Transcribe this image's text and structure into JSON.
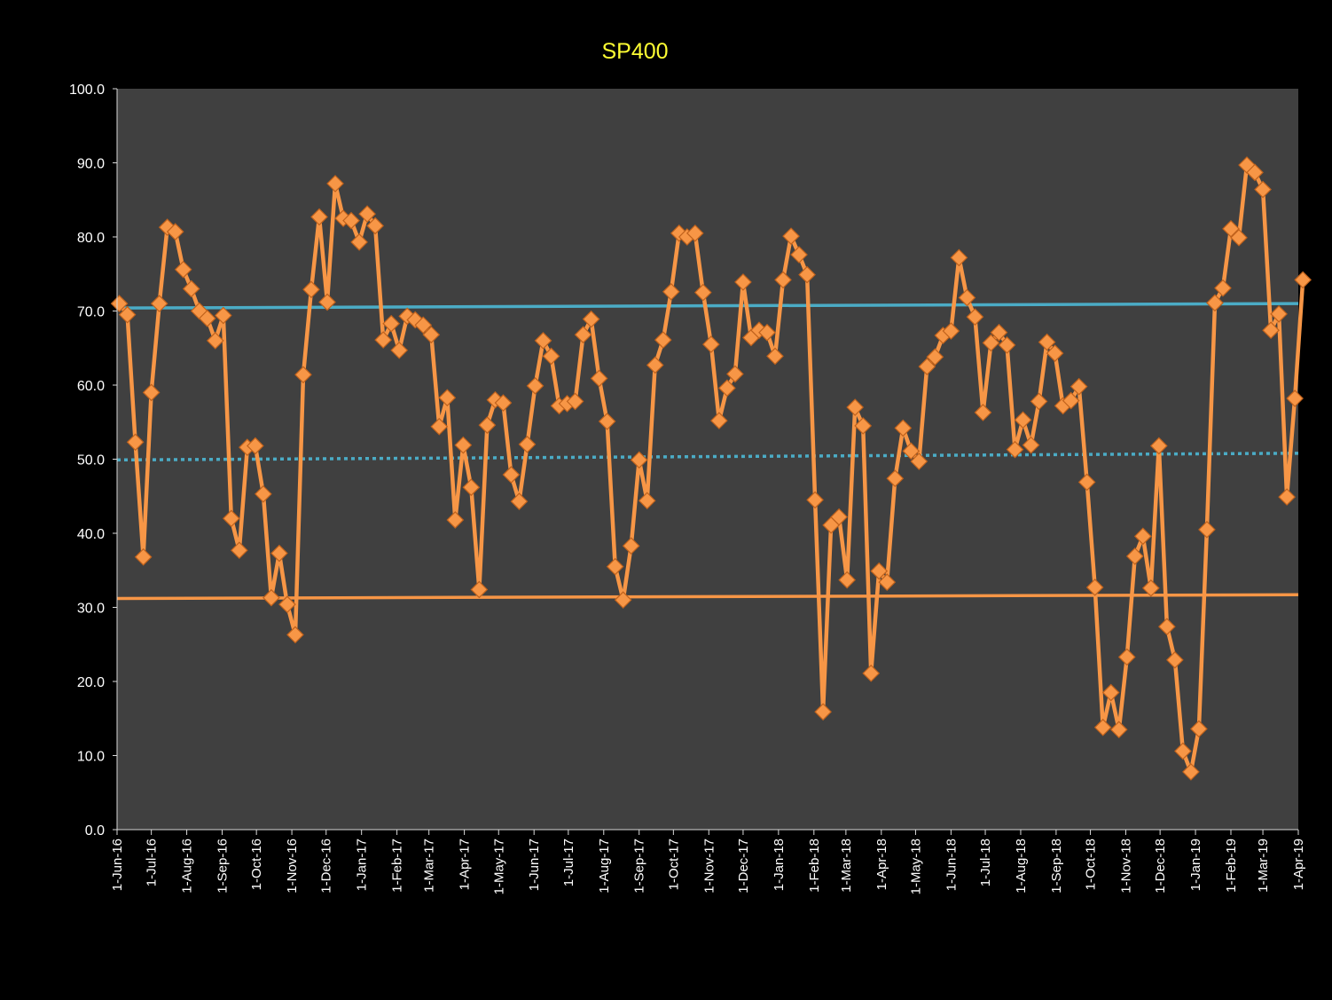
{
  "chart_data": {
    "type": "line",
    "title": "SP400",
    "xlabel": "",
    "ylabel": "",
    "ylim": [
      0,
      100
    ],
    "yticks": [
      "0.0",
      "10.0",
      "20.0",
      "30.0",
      "40.0",
      "50.0",
      "60.0",
      "70.0",
      "80.0",
      "90.0",
      "100.0"
    ],
    "xlim": [
      "2016-06-01",
      "2019-04-01"
    ],
    "xticks": [
      {
        "date": "2016-06-01",
        "label": "1-Jun-16"
      },
      {
        "date": "2016-07-01",
        "label": "1-Jul-16"
      },
      {
        "date": "2016-08-01",
        "label": "1-Aug-16"
      },
      {
        "date": "2016-09-01",
        "label": "1-Sep-16"
      },
      {
        "date": "2016-10-01",
        "label": "1-Oct-16"
      },
      {
        "date": "2016-11-01",
        "label": "1-Nov-16"
      },
      {
        "date": "2016-12-01",
        "label": "1-Dec-16"
      },
      {
        "date": "2017-01-01",
        "label": "1-Jan-17"
      },
      {
        "date": "2017-02-01",
        "label": "1-Feb-17"
      },
      {
        "date": "2017-03-01",
        "label": "1-Mar-17"
      },
      {
        "date": "2017-04-01",
        "label": "1-Apr-17"
      },
      {
        "date": "2017-05-01",
        "label": "1-May-17"
      },
      {
        "date": "2017-06-01",
        "label": "1-Jun-17"
      },
      {
        "date": "2017-07-01",
        "label": "1-Jul-17"
      },
      {
        "date": "2017-08-01",
        "label": "1-Aug-17"
      },
      {
        "date": "2017-09-01",
        "label": "1-Sep-17"
      },
      {
        "date": "2017-10-01",
        "label": "1-Oct-17"
      },
      {
        "date": "2017-11-01",
        "label": "1-Nov-17"
      },
      {
        "date": "2017-12-01",
        "label": "1-Dec-17"
      },
      {
        "date": "2018-01-01",
        "label": "1-Jan-18"
      },
      {
        "date": "2018-02-01",
        "label": "1-Feb-18"
      },
      {
        "date": "2018-03-01",
        "label": "1-Mar-18"
      },
      {
        "date": "2018-04-01",
        "label": "1-Apr-18"
      },
      {
        "date": "2018-05-01",
        "label": "1-May-18"
      },
      {
        "date": "2018-06-01",
        "label": "1-Jun-18"
      },
      {
        "date": "2018-07-01",
        "label": "1-Jul-18"
      },
      {
        "date": "2018-08-01",
        "label": "1-Aug-18"
      },
      {
        "date": "2018-09-01",
        "label": "1-Sep-18"
      },
      {
        "date": "2018-10-01",
        "label": "1-Oct-18"
      },
      {
        "date": "2018-11-01",
        "label": "1-Nov-18"
      },
      {
        "date": "2018-12-01",
        "label": "1-Dec-18"
      },
      {
        "date": "2019-01-01",
        "label": "1-Jan-19"
      },
      {
        "date": "2019-02-01",
        "label": "1-Feb-19"
      },
      {
        "date": "2019-03-01",
        "label": "1-Mar-19"
      },
      {
        "date": "2019-04-01",
        "label": "1-Apr-19"
      }
    ],
    "grid": false,
    "legend": "none",
    "colors": {
      "background": "#000000",
      "plot_area": "#404040",
      "series": "#f79646",
      "marker_edge": "#c0621c",
      "upper_line": "#4bacc6",
      "mid_line": "#4bacc6",
      "lower_line": "#f79646",
      "text": "#ffffff",
      "title": "#ffff33"
    },
    "series": [
      {
        "marker": "diamond",
        "points": [
          {
            "x": "2016-06-03",
            "y": 71.0
          },
          {
            "x": "2016-06-10",
            "y": 69.5
          },
          {
            "x": "2016-06-17",
            "y": 52.3
          },
          {
            "x": "2016-06-24",
            "y": 36.8
          },
          {
            "x": "2016-07-01",
            "y": 59.0
          },
          {
            "x": "2016-07-08",
            "y": 71.0
          },
          {
            "x": "2016-07-15",
            "y": 81.3
          },
          {
            "x": "2016-07-22",
            "y": 80.7
          },
          {
            "x": "2016-07-29",
            "y": 75.6
          },
          {
            "x": "2016-08-05",
            "y": 73.0
          },
          {
            "x": "2016-08-12",
            "y": 70.0
          },
          {
            "x": "2016-08-19",
            "y": 69.0
          },
          {
            "x": "2016-08-26",
            "y": 66.0
          },
          {
            "x": "2016-09-02",
            "y": 69.4
          },
          {
            "x": "2016-09-09",
            "y": 42.0
          },
          {
            "x": "2016-09-16",
            "y": 37.7
          },
          {
            "x": "2016-09-23",
            "y": 51.6
          },
          {
            "x": "2016-09-30",
            "y": 51.8
          },
          {
            "x": "2016-10-07",
            "y": 45.3
          },
          {
            "x": "2016-10-14",
            "y": 31.3
          },
          {
            "x": "2016-10-21",
            "y": 37.3
          },
          {
            "x": "2016-10-28",
            "y": 30.4
          },
          {
            "x": "2016-11-04",
            "y": 26.3
          },
          {
            "x": "2016-11-11",
            "y": 61.4
          },
          {
            "x": "2016-11-18",
            "y": 72.9
          },
          {
            "x": "2016-11-25",
            "y": 82.7
          },
          {
            "x": "2016-12-02",
            "y": 71.2
          },
          {
            "x": "2016-12-09",
            "y": 87.2
          },
          {
            "x": "2016-12-16",
            "y": 82.5
          },
          {
            "x": "2016-12-23",
            "y": 82.2
          },
          {
            "x": "2016-12-30",
            "y": 79.3
          },
          {
            "x": "2017-01-06",
            "y": 83.1
          },
          {
            "x": "2017-01-13",
            "y": 81.5
          },
          {
            "x": "2017-01-20",
            "y": 66.1
          },
          {
            "x": "2017-01-27",
            "y": 68.3
          },
          {
            "x": "2017-02-03",
            "y": 64.7
          },
          {
            "x": "2017-02-10",
            "y": 69.3
          },
          {
            "x": "2017-02-17",
            "y": 68.8
          },
          {
            "x": "2017-02-24",
            "y": 68.1
          },
          {
            "x": "2017-03-03",
            "y": 66.8
          },
          {
            "x": "2017-03-10",
            "y": 54.4
          },
          {
            "x": "2017-03-17",
            "y": 58.3
          },
          {
            "x": "2017-03-24",
            "y": 41.8
          },
          {
            "x": "2017-03-31",
            "y": 51.9
          },
          {
            "x": "2017-04-07",
            "y": 46.2
          },
          {
            "x": "2017-04-14",
            "y": 32.4
          },
          {
            "x": "2017-04-21",
            "y": 54.6
          },
          {
            "x": "2017-04-28",
            "y": 58.0
          },
          {
            "x": "2017-05-05",
            "y": 57.6
          },
          {
            "x": "2017-05-12",
            "y": 47.9
          },
          {
            "x": "2017-05-19",
            "y": 44.3
          },
          {
            "x": "2017-05-26",
            "y": 52.0
          },
          {
            "x": "2017-06-02",
            "y": 59.9
          },
          {
            "x": "2017-06-09",
            "y": 66.0
          },
          {
            "x": "2017-06-16",
            "y": 63.9
          },
          {
            "x": "2017-06-23",
            "y": 57.2
          },
          {
            "x": "2017-06-30",
            "y": 57.5
          },
          {
            "x": "2017-07-07",
            "y": 57.8
          },
          {
            "x": "2017-07-14",
            "y": 66.8
          },
          {
            "x": "2017-07-21",
            "y": 68.9
          },
          {
            "x": "2017-07-28",
            "y": 60.9
          },
          {
            "x": "2017-08-04",
            "y": 55.1
          },
          {
            "x": "2017-08-11",
            "y": 35.5
          },
          {
            "x": "2017-08-18",
            "y": 31.0
          },
          {
            "x": "2017-08-25",
            "y": 38.3
          },
          {
            "x": "2017-09-01",
            "y": 49.9
          },
          {
            "x": "2017-09-08",
            "y": 44.4
          },
          {
            "x": "2017-09-15",
            "y": 62.7
          },
          {
            "x": "2017-09-22",
            "y": 66.1
          },
          {
            "x": "2017-09-29",
            "y": 72.6
          },
          {
            "x": "2017-10-06",
            "y": 80.5
          },
          {
            "x": "2017-10-13",
            "y": 80.0
          },
          {
            "x": "2017-10-20",
            "y": 80.5
          },
          {
            "x": "2017-10-27",
            "y": 72.5
          },
          {
            "x": "2017-11-03",
            "y": 65.5
          },
          {
            "x": "2017-11-10",
            "y": 55.2
          },
          {
            "x": "2017-11-17",
            "y": 59.6
          },
          {
            "x": "2017-11-24",
            "y": 61.5
          },
          {
            "x": "2017-12-01",
            "y": 73.9
          },
          {
            "x": "2017-12-08",
            "y": 66.4
          },
          {
            "x": "2017-12-15",
            "y": 67.4
          },
          {
            "x": "2017-12-22",
            "y": 67.1
          },
          {
            "x": "2017-12-29",
            "y": 63.9
          },
          {
            "x": "2018-01-05",
            "y": 74.2
          },
          {
            "x": "2018-01-12",
            "y": 80.1
          },
          {
            "x": "2018-01-19",
            "y": 77.6
          },
          {
            "x": "2018-01-26",
            "y": 74.9
          },
          {
            "x": "2018-02-02",
            "y": 44.5
          },
          {
            "x": "2018-02-09",
            "y": 15.9
          },
          {
            "x": "2018-02-16",
            "y": 41.1
          },
          {
            "x": "2018-02-23",
            "y": 42.2
          },
          {
            "x": "2018-03-02",
            "y": 33.7
          },
          {
            "x": "2018-03-09",
            "y": 57.0
          },
          {
            "x": "2018-03-16",
            "y": 54.5
          },
          {
            "x": "2018-03-23",
            "y": 21.1
          },
          {
            "x": "2018-03-30",
            "y": 34.9
          },
          {
            "x": "2018-04-06",
            "y": 33.4
          },
          {
            "x": "2018-04-13",
            "y": 47.4
          },
          {
            "x": "2018-04-20",
            "y": 54.2
          },
          {
            "x": "2018-04-27",
            "y": 51.1
          },
          {
            "x": "2018-05-04",
            "y": 49.7
          },
          {
            "x": "2018-05-11",
            "y": 62.5
          },
          {
            "x": "2018-05-18",
            "y": 63.8
          },
          {
            "x": "2018-05-25",
            "y": 66.7
          },
          {
            "x": "2018-06-01",
            "y": 67.3
          },
          {
            "x": "2018-06-08",
            "y": 77.2
          },
          {
            "x": "2018-06-15",
            "y": 71.8
          },
          {
            "x": "2018-06-22",
            "y": 69.2
          },
          {
            "x": "2018-06-29",
            "y": 56.3
          },
          {
            "x": "2018-07-06",
            "y": 65.7
          },
          {
            "x": "2018-07-13",
            "y": 67.1
          },
          {
            "x": "2018-07-20",
            "y": 65.4
          },
          {
            "x": "2018-07-27",
            "y": 51.3
          },
          {
            "x": "2018-08-03",
            "y": 55.3
          },
          {
            "x": "2018-08-10",
            "y": 51.9
          },
          {
            "x": "2018-08-17",
            "y": 57.8
          },
          {
            "x": "2018-08-24",
            "y": 65.8
          },
          {
            "x": "2018-08-31",
            "y": 64.3
          },
          {
            "x": "2018-09-07",
            "y": 57.2
          },
          {
            "x": "2018-09-14",
            "y": 57.9
          },
          {
            "x": "2018-09-21",
            "y": 59.8
          },
          {
            "x": "2018-09-28",
            "y": 46.9
          },
          {
            "x": "2018-10-05",
            "y": 32.7
          },
          {
            "x": "2018-10-12",
            "y": 13.8
          },
          {
            "x": "2018-10-19",
            "y": 18.5
          },
          {
            "x": "2018-10-26",
            "y": 13.5
          },
          {
            "x": "2018-11-02",
            "y": 23.3
          },
          {
            "x": "2018-11-09",
            "y": 36.9
          },
          {
            "x": "2018-11-16",
            "y": 39.6
          },
          {
            "x": "2018-11-23",
            "y": 32.6
          },
          {
            "x": "2018-11-30",
            "y": 51.8
          },
          {
            "x": "2018-12-07",
            "y": 27.4
          },
          {
            "x": "2018-12-14",
            "y": 22.9
          },
          {
            "x": "2018-12-21",
            "y": 10.6
          },
          {
            "x": "2018-12-28",
            "y": 7.8
          },
          {
            "x": "2019-01-04",
            "y": 13.6
          },
          {
            "x": "2019-01-11",
            "y": 40.5
          },
          {
            "x": "2019-01-18",
            "y": 71.1
          },
          {
            "x": "2019-01-25",
            "y": 73.1
          },
          {
            "x": "2019-02-01",
            "y": 81.1
          },
          {
            "x": "2019-02-08",
            "y": 79.9
          },
          {
            "x": "2019-02-15",
            "y": 89.7
          },
          {
            "x": "2019-02-22",
            "y": 88.7
          },
          {
            "x": "2019-03-01",
            "y": 86.4
          },
          {
            "x": "2019-03-08",
            "y": 67.4
          },
          {
            "x": "2019-03-15",
            "y": 69.6
          },
          {
            "x": "2019-03-22",
            "y": 44.9
          },
          {
            "x": "2019-03-29",
            "y": 58.2
          },
          {
            "x": "2019-04-05",
            "y": 74.2
          }
        ]
      }
    ],
    "reference_lines": [
      {
        "style": "solid",
        "color": "#4bacc6",
        "from": {
          "x": "2016-06-01",
          "y": 70.4
        },
        "to": {
          "x": "2019-04-01",
          "y": 71.0
        }
      },
      {
        "style": "dotted",
        "color": "#4bacc6",
        "from": {
          "x": "2016-06-01",
          "y": 49.9
        },
        "to": {
          "x": "2019-04-01",
          "y": 50.8
        }
      },
      {
        "style": "solid",
        "color": "#f79646",
        "from": {
          "x": "2016-06-01",
          "y": 31.2
        },
        "to": {
          "x": "2019-04-01",
          "y": 31.7
        }
      }
    ]
  }
}
